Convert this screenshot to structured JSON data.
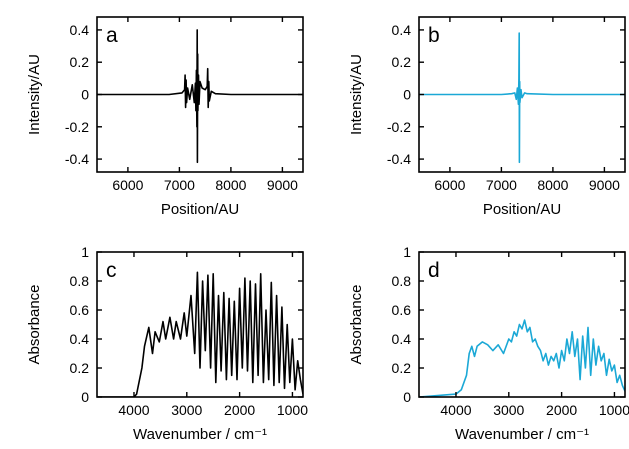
{
  "chart_data": [
    {
      "type": "line",
      "panel_label": "a",
      "xlabel": "Position/AU",
      "ylabel": "Intensity/AU",
      "xlim": [
        5400,
        9400
      ],
      "ylim": [
        -0.48,
        0.48
      ],
      "xticks": [
        6000,
        7000,
        8000,
        9000
      ],
      "xtick_labels": [
        "6000",
        "7000",
        "8000",
        "9000"
      ],
      "yticks": [
        -0.4,
        -0.2,
        0,
        0.2,
        0.4
      ],
      "ytick_labels": [
        "-0.4",
        "-0.2",
        "0",
        "0.2",
        "0.4"
      ],
      "grid": false,
      "color": "#000000",
      "series": [
        {
          "x": [
            5400,
            6000,
            6800,
            7050,
            7100,
            7110,
            7120,
            7130,
            7140,
            7160,
            7200,
            7250,
            7290,
            7310,
            7320,
            7330,
            7340,
            7345,
            7350,
            7355,
            7360,
            7370,
            7380,
            7400,
            7440,
            7500,
            7540,
            7550,
            7560,
            7570,
            7580,
            7620,
            7700,
            8000,
            8800,
            9400
          ],
          "y": [
            0,
            0,
            0,
            0.01,
            0.03,
            0.12,
            -0.08,
            0.09,
            -0.05,
            0.04,
            -0.03,
            0.06,
            -0.05,
            0.07,
            -0.1,
            0.15,
            -0.2,
            0.4,
            -0.42,
            0.25,
            -0.1,
            0.12,
            -0.06,
            0.08,
            0.04,
            0.03,
            0.05,
            0.16,
            -0.08,
            0.08,
            -0.04,
            0.02,
            0.005,
            0,
            0,
            0
          ]
        }
      ]
    },
    {
      "type": "line",
      "panel_label": "b",
      "xlabel": "Position/AU",
      "ylabel": "Intensity/AU",
      "xlim": [
        5400,
        9400
      ],
      "ylim": [
        -0.48,
        0.48
      ],
      "xticks": [
        6000,
        7000,
        8000,
        9000
      ],
      "xtick_labels": [
        "6000",
        "7000",
        "8000",
        "9000"
      ],
      "yticks": [
        -0.4,
        -0.2,
        0,
        0.2,
        0.4
      ],
      "ytick_labels": [
        "-0.4",
        "-0.2",
        "0",
        "0.2",
        "0.4"
      ],
      "grid": false,
      "color": "#1ba8d6",
      "series": [
        {
          "x": [
            5400,
            6000,
            7000,
            7200,
            7260,
            7290,
            7310,
            7330,
            7340,
            7345,
            7350,
            7355,
            7360,
            7380,
            7400,
            7450,
            7500,
            8000,
            9400
          ],
          "y": [
            0,
            0,
            0,
            0.005,
            0.01,
            -0.03,
            0.04,
            -0.06,
            0.1,
            0.38,
            -0.42,
            0.08,
            -0.05,
            0.03,
            -0.02,
            0.01,
            0.005,
            0,
            0
          ]
        }
      ]
    },
    {
      "type": "line",
      "panel_label": "c",
      "xlabel": "Wavenumber / cm⁻¹",
      "ylabel": "Absorbance",
      "xlim": [
        4700,
        800
      ],
      "ylim": [
        0,
        1
      ],
      "xticks": [
        4000,
        3000,
        2000,
        1000
      ],
      "xtick_labels": [
        "4000",
        "3000",
        "2000",
        "1000"
      ],
      "yticks": [
        0,
        0.2,
        0.4,
        0.6,
        0.8,
        1
      ],
      "ytick_labels": [
        "0",
        "0.2",
        "0.4",
        "0.6",
        "0.8",
        "1"
      ],
      "grid": false,
      "color": "#000000",
      "series": [
        {
          "x": [
            4700,
            4000,
            3950,
            3850,
            3800,
            3720,
            3650,
            3600,
            3520,
            3450,
            3400,
            3320,
            3250,
            3200,
            3120,
            3050,
            3000,
            2920,
            2850,
            2800,
            2750,
            2700,
            2650,
            2600,
            2550,
            2500,
            2450,
            2400,
            2350,
            2300,
            2250,
            2200,
            2150,
            2100,
            2050,
            2000,
            1950,
            1900,
            1850,
            1800,
            1750,
            1700,
            1650,
            1600,
            1550,
            1500,
            1450,
            1400,
            1350,
            1300,
            1250,
            1200,
            1150,
            1100,
            1050,
            1000,
            950,
            900,
            850,
            800
          ],
          "y": [
            0,
            0,
            0.02,
            0.2,
            0.35,
            0.48,
            0.3,
            0.45,
            0.38,
            0.52,
            0.4,
            0.55,
            0.4,
            0.52,
            0.4,
            0.58,
            0.42,
            0.7,
            0.3,
            0.86,
            0.2,
            0.8,
            0.32,
            0.84,
            0.2,
            0.85,
            0.1,
            0.7,
            0.18,
            0.72,
            0.12,
            0.68,
            0.15,
            0.66,
            0.12,
            0.75,
            0.2,
            0.82,
            0.18,
            0.8,
            0.1,
            0.78,
            0.15,
            0.85,
            0.1,
            0.6,
            0.12,
            0.79,
            0.08,
            0.7,
            0.1,
            0.62,
            0.06,
            0.5,
            0.1,
            0.4,
            0.05,
            0.25,
            0.12,
            0.02
          ]
        }
      ]
    },
    {
      "type": "line",
      "panel_label": "d",
      "xlabel": "Wavenumber / cm⁻¹",
      "ylabel": "Absorbance",
      "xlim": [
        4700,
        800
      ],
      "ylim": [
        0,
        1
      ],
      "xticks": [
        4000,
        3000,
        2000,
        1000
      ],
      "xtick_labels": [
        "4000",
        "3000",
        "2000",
        "1000"
      ],
      "yticks": [
        0,
        0.2,
        0.4,
        0.6,
        0.8,
        1
      ],
      "ytick_labels": [
        "0",
        "0.2",
        "0.4",
        "0.6",
        "0.8",
        "1"
      ],
      "grid": false,
      "color": "#1ba8d6",
      "series": [
        {
          "x": [
            4700,
            4000,
            3900,
            3800,
            3750,
            3700,
            3650,
            3600,
            3500,
            3400,
            3300,
            3200,
            3100,
            3000,
            2950,
            2900,
            2850,
            2800,
            2750,
            2700,
            2650,
            2600,
            2550,
            2500,
            2450,
            2400,
            2350,
            2300,
            2250,
            2200,
            2150,
            2100,
            2050,
            2000,
            1950,
            1900,
            1850,
            1800,
            1750,
            1700,
            1650,
            1600,
            1550,
            1500,
            1450,
            1400,
            1350,
            1300,
            1250,
            1200,
            1150,
            1100,
            1050,
            1000,
            950,
            900,
            850,
            800
          ],
          "y": [
            0.0,
            0.02,
            0.05,
            0.15,
            0.3,
            0.35,
            0.28,
            0.35,
            0.38,
            0.36,
            0.32,
            0.36,
            0.3,
            0.4,
            0.38,
            0.45,
            0.42,
            0.5,
            0.47,
            0.53,
            0.45,
            0.48,
            0.38,
            0.4,
            0.35,
            0.32,
            0.25,
            0.3,
            0.22,
            0.28,
            0.25,
            0.3,
            0.2,
            0.32,
            0.25,
            0.4,
            0.3,
            0.45,
            0.28,
            0.4,
            0.12,
            0.42,
            0.2,
            0.48,
            0.15,
            0.4,
            0.22,
            0.35,
            0.25,
            0.3,
            0.15,
            0.26,
            0.18,
            0.22,
            0.1,
            0.15,
            0.08,
            0.04
          ]
        }
      ]
    }
  ]
}
